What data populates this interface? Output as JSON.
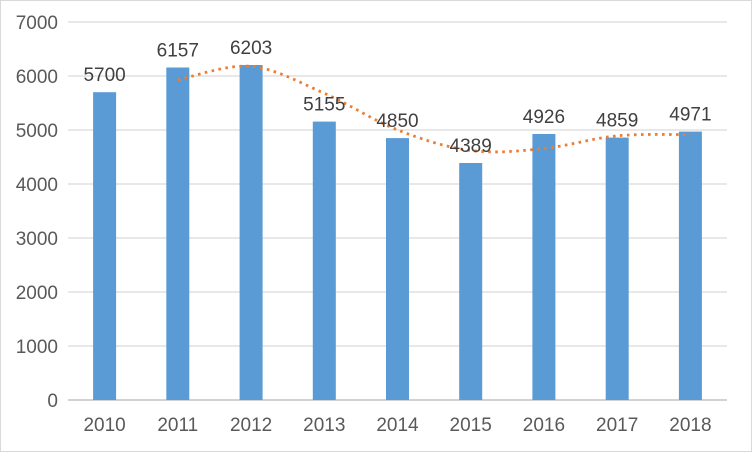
{
  "chart_data": {
    "type": "bar",
    "title": "",
    "xlabel": "",
    "ylabel": "",
    "categories": [
      "2010",
      "2011",
      "2012",
      "2013",
      "2014",
      "2015",
      "2016",
      "2017",
      "2018"
    ],
    "series": [
      {
        "name": "annual-values",
        "type": "bar",
        "color": "#5B9BD5",
        "values": [
          5700,
          6157,
          6203,
          5155,
          4850,
          4389,
          4926,
          4859,
          4971
        ],
        "data_labels": [
          "5700",
          "6157",
          "6203",
          "5155",
          "4850",
          "4389",
          "4926",
          "4859",
          "4971"
        ]
      },
      {
        "name": "trendline-2-period-moving-average",
        "type": "dotted-line",
        "color": "#ED7D31",
        "x_indices": [
          1,
          2,
          3,
          4,
          5,
          6,
          7,
          8
        ],
        "values": [
          5928.5,
          6180,
          5679,
          5002.5,
          4619.5,
          4657.5,
          4892.5,
          4915
        ]
      }
    ],
    "ylim": [
      0,
      7000
    ],
    "yticks": [
      "0",
      "1000",
      "2000",
      "3000",
      "4000",
      "5000",
      "6000",
      "7000"
    ],
    "grid": "horizontal",
    "legend_position": "none"
  },
  "style": {
    "bar_color": "#5B9BD5",
    "trend_color": "#ED7D31",
    "gridline_color": "#D9D9D9",
    "axis_line_color": "#D2D2D2",
    "axis_text_color": "#595959",
    "data_label_color": "#404040",
    "border_color": "#D9D9D9",
    "background": "#FFFFFF"
  }
}
